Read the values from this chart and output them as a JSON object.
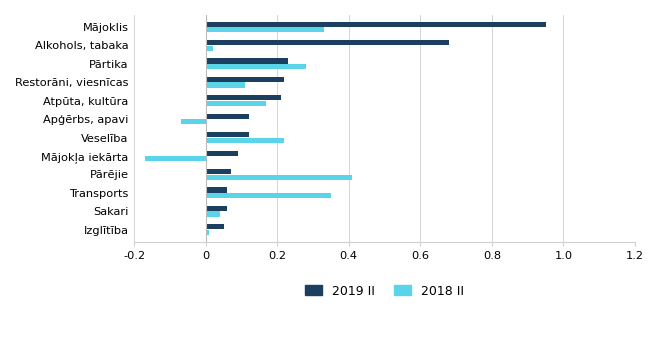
{
  "categories": [
    "Mājoklis",
    "Alkohols, tabaka",
    "Pārtika",
    "Restorāni, viesnīcas",
    "Atpūta, kultūra",
    "Apģērbs, apavi",
    "Veselība",
    "Mājokļa iekārta",
    "Pārējie",
    "Transports",
    "Sakari",
    "Izglītība"
  ],
  "series_2019": [
    0.95,
    0.68,
    0.23,
    0.22,
    0.21,
    0.12,
    0.12,
    0.09,
    0.07,
    0.06,
    0.06,
    0.05
  ],
  "series_2018": [
    0.33,
    0.02,
    0.28,
    0.11,
    0.17,
    -0.07,
    0.22,
    -0.17,
    0.41,
    0.35,
    0.04,
    0.01
  ],
  "color_2019": "#1b3f5e",
  "color_2018": "#5ad4e8",
  "xlim": [
    -0.2,
    1.2
  ],
  "xticks": [
    -0.2,
    0.0,
    0.2,
    0.4,
    0.6,
    0.8,
    1.0,
    1.2
  ],
  "xtick_labels": [
    "-0.2",
    "0",
    "0.2",
    "0.4",
    "0.6",
    "0.8",
    "1.0",
    "1.2"
  ],
  "legend_2019": "2019 II",
  "legend_2018": "2018 II",
  "bar_height": 0.28,
  "background_color": "#ffffff",
  "gridcolor": "#d0d0d0"
}
